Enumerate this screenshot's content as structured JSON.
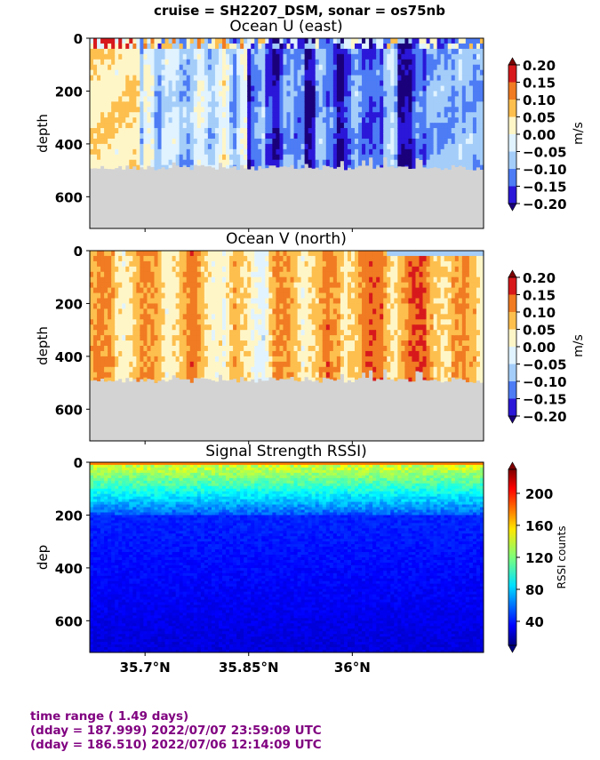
{
  "suptitle": "cruise = SH2207_DSM,  sonar = os75nb",
  "x_ticks": [
    "35.7°N",
    "35.85°N",
    "36°N"
  ],
  "x_tick_values": [
    35.7,
    35.85,
    36.0
  ],
  "footer": {
    "line1": "time range ( 1.49 days)",
    "line2": "(dday = 187.999) 2022/07/07 23:59:09 UTC",
    "line3": "(dday = 186.510) 2022/07/06 12:14:09 UTC"
  },
  "chart_data": [
    {
      "type": "heatmap",
      "title": "Ocean U (east)",
      "ylabel": "depth",
      "ylim": [
        720,
        0
      ],
      "yticks": [
        0,
        200,
        400,
        600
      ],
      "xlim": [
        35.62,
        36.19
      ],
      "colorbar": {
        "label": "m/s",
        "ticks": [
          "0.20",
          "0.15",
          "0.10",
          "0.05",
          "0.00",
          "−0.05",
          "−0.10",
          "−0.15",
          "−0.20"
        ],
        "levels": [
          0.2,
          0.15,
          0.1,
          0.05,
          0.0,
          -0.05,
          -0.1,
          -0.15,
          -0.2
        ],
        "colors": [
          "#7a0403",
          "#d7191c",
          "#f07b22",
          "#fdbf4e",
          "#fff6c8",
          "#e0f3ff",
          "#a4cdf9",
          "#4d7cf5",
          "#2a17d8",
          "#1a007a"
        ]
      },
      "bottom_mask_depth": "≈480–530",
      "pattern": "positive (orange/yellow) at west, strong negative (blue) in center-east"
    },
    {
      "type": "heatmap",
      "title": "Ocean V (north)",
      "ylabel": "depth",
      "ylim": [
        720,
        0
      ],
      "yticks": [
        0,
        200,
        400,
        600
      ],
      "xlim": [
        35.62,
        36.19
      ],
      "colorbar": {
        "label": "m/s",
        "ticks": [
          "0.20",
          "0.15",
          "0.10",
          "0.05",
          "0.00",
          "−0.05",
          "−0.10",
          "−0.15",
          "−0.20"
        ],
        "levels": [
          0.2,
          0.15,
          0.1,
          0.05,
          0.0,
          -0.05,
          -0.1,
          -0.15,
          -0.2
        ]
      },
      "bottom_mask_depth": "≈480–510",
      "pattern": "mostly positive 0.05–0.15, darker red near west and east"
    },
    {
      "type": "heatmap",
      "title": "Signal Strength RSSI)",
      "ylabel": "dep",
      "ylim": [
        720,
        0
      ],
      "yticks": [
        0,
        200,
        400,
        600
      ],
      "xlim": [
        35.62,
        36.19
      ],
      "colorbar": {
        "label": "RSSI counts",
        "ticks": [
          "200",
          "160",
          "120",
          "80",
          "40"
        ],
        "levels": [
          200,
          160,
          120,
          80,
          40
        ],
        "range": [
          10,
          230
        ]
      },
      "pattern": "high (red/yellow) near surface decreasing to low (blue) below ~200"
    }
  ]
}
